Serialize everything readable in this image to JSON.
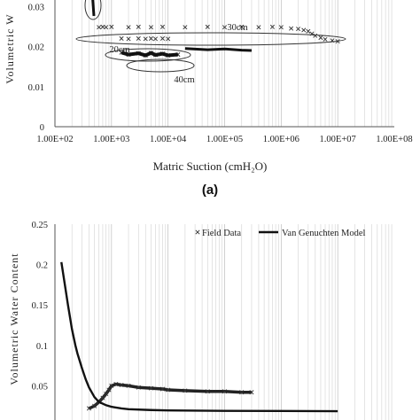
{
  "caption": "(a)",
  "chart_data": [
    {
      "type": "scatter",
      "panel": "a",
      "xscale": "log",
      "xlim": [
        100,
        100000000
      ],
      "ylim": [
        0,
        0.04
      ],
      "xlabel": "Matric Suction (cmH₂O)",
      "ylabel": "Volumetric W",
      "x_ticks": [
        "1.00E+02",
        "1.00E+03",
        "1.00E+04",
        "1.00E+05",
        "1.00E+06",
        "1.00E+07",
        "1.00E+08"
      ],
      "y_ticks": [
        "0",
        "0.01",
        "0.02",
        "0.03"
      ],
      "grid": "vertical minor log grid",
      "annotations": [
        "30cm",
        "20cm",
        "40cm"
      ],
      "series": [
        {
          "marker": "x",
          "x": [
            600,
            700,
            800,
            1000,
            2000,
            3000,
            5000,
            8000,
            20000,
            50000,
            100000,
            200000,
            400000,
            700000,
            1000000,
            1500000,
            2000000,
            2500000,
            3000000,
            3500000,
            4000000,
            5000000,
            6000000,
            8000000,
            10000000
          ],
          "y": [
            0.0248,
            0.0249,
            0.0248,
            0.0249,
            0.0248,
            0.0249,
            0.0248,
            0.0249,
            0.0248,
            0.0249,
            0.0248,
            0.0249,
            0.0248,
            0.0249,
            0.0248,
            0.0245,
            0.0244,
            0.0241,
            0.0238,
            0.0232,
            0.0227,
            0.0222,
            0.0218,
            0.0215,
            0.0213
          ]
        },
        {
          "marker": "x",
          "x": [
            1500,
            2000,
            3000,
            4000,
            5000,
            6000,
            8000,
            10000
          ],
          "y": [
            0.022,
            0.0219,
            0.022,
            0.0219,
            0.022,
            0.0219,
            0.022,
            0.0219
          ]
        },
        {
          "marker": "x",
          "x": [
            1500,
            2000,
            3000,
            4000,
            5000,
            6000,
            8000,
            10000,
            15000
          ],
          "y": [
            0.0185,
            0.018,
            0.0183,
            0.0178,
            0.0184,
            0.0179,
            0.0182,
            0.0178,
            0.018
          ]
        },
        {
          "marker": "line",
          "x": [
            20000,
            50000,
            100000,
            200000,
            300000
          ],
          "y": [
            0.0195,
            0.0192,
            0.0194,
            0.0191,
            0.019
          ]
        }
      ]
    },
    {
      "type": "scatter",
      "panel": "b",
      "xscale": "log",
      "xlim": [
        100,
        100000000
      ],
      "ylim": [
        0,
        0.25
      ],
      "ylabel": "Volumetric Water Content",
      "y_ticks": [
        "0.05",
        "0.1",
        "0.15",
        "0.2",
        "0.25"
      ],
      "grid": "vertical minor log grid",
      "legend": [
        "Field Data",
        "Van Genuchten Model"
      ],
      "legend_position": "top-right",
      "series": [
        {
          "name": "Field Data",
          "marker": "x",
          "x": [
            400,
            500,
            600,
            700,
            800,
            900,
            1000,
            1200,
            1500,
            2000,
            3000,
            5000,
            8000,
            10000,
            20000,
            50000,
            100000,
            200000,
            300000
          ],
          "y": [
            0.022,
            0.025,
            0.03,
            0.035,
            0.04,
            0.045,
            0.05,
            0.052,
            0.051,
            0.05,
            0.048,
            0.047,
            0.046,
            0.045,
            0.044,
            0.043,
            0.043,
            0.042,
            0.042
          ]
        },
        {
          "name": "Van Genuchten Model",
          "marker": "line",
          "x": [
            130,
            170,
            200,
            230,
            250,
            300,
            350,
            400,
            500,
            600,
            800,
            1000,
            1500,
            2000,
            5000,
            10000,
            100000,
            1000000,
            10000000
          ],
          "y": [
            0.203,
            0.15,
            0.12,
            0.1,
            0.09,
            0.072,
            0.058,
            0.048,
            0.036,
            0.03,
            0.026,
            0.024,
            0.022,
            0.021,
            0.02,
            0.0195,
            0.019,
            0.0188,
            0.0186
          ]
        }
      ]
    }
  ]
}
